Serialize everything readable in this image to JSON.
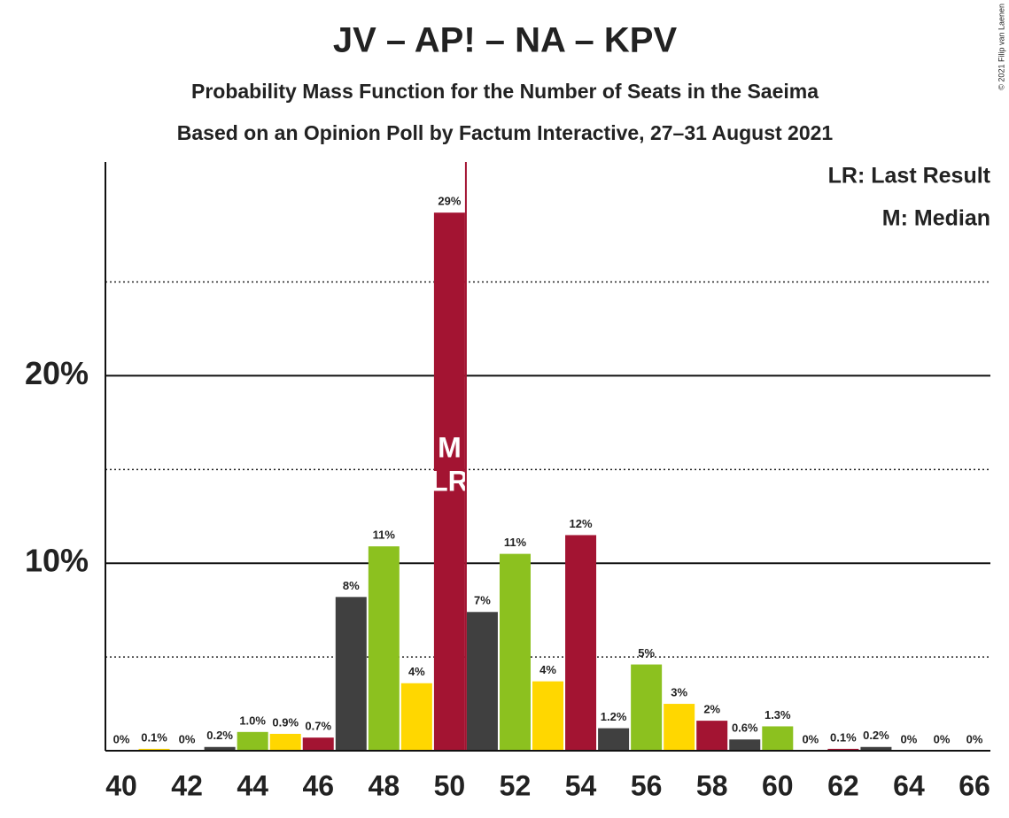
{
  "chart_data": {
    "type": "bar",
    "title": "JV – AP! – NA – KPV",
    "subtitle": "Probability Mass Function for the Number of Seats in the Saeima",
    "subtitle2": "Based on an Opinion Poll by Factum Interactive, 27–31 August 2021",
    "copyright": "© 2021 Filip van Laenen",
    "legend": [
      "LR: Last Result",
      "M: Median"
    ],
    "markers": [
      {
        "text": "M",
        "category": 50
      },
      {
        "text": "LR",
        "category": 50
      }
    ],
    "categories": [
      40,
      null,
      42,
      null,
      44,
      null,
      46,
      null,
      48,
      null,
      50,
      null,
      52,
      null,
      54,
      null,
      56,
      null,
      58,
      null,
      60,
      null,
      62,
      null,
      64,
      null,
      66
    ],
    "values": [
      0,
      0.1,
      0,
      0.2,
      1.0,
      0.9,
      0.7,
      8.2,
      10.9,
      3.6,
      28.7,
      7.4,
      10.5,
      3.7,
      11.5,
      1.2,
      4.6,
      2.5,
      1.6,
      0.6,
      1.3,
      0,
      0.1,
      0.2,
      0,
      0,
      0
    ],
    "value_labels": [
      "0%",
      "0.1%",
      "0%",
      "0.2%",
      "1.0%",
      "0.9%",
      "0.7%",
      "8%",
      "11%",
      "4%",
      "29%",
      "7%",
      "11%",
      "4%",
      "12%",
      "1.2%",
      "5%",
      "3%",
      "2%",
      "0.6%",
      "1.3%",
      "0%",
      "0.1%",
      "0.2%",
      "0%",
      "0%",
      "0%"
    ],
    "colors": [
      "#8cc11f",
      "#ffd700",
      "#a31432",
      "#404040",
      "#8cc11f",
      "#ffd700",
      "#a31432",
      "#404040",
      "#8cc11f",
      "#ffd700",
      "#a31432",
      "#404040",
      "#8cc11f",
      "#ffd700",
      "#a31432",
      "#404040",
      "#8cc11f",
      "#ffd700",
      "#a31432",
      "#404040",
      "#8cc11f",
      "#ffd700",
      "#a31432",
      "#404040",
      "#8cc11f",
      "#ffd700",
      "#a31432"
    ],
    "ylim": [
      0,
      31.4
    ],
    "yticks": [
      {
        "value": 10,
        "label": "10%"
      },
      {
        "value": 20,
        "label": "20%"
      }
    ],
    "minor_grid": [
      5,
      15,
      25
    ],
    "grid": true
  }
}
